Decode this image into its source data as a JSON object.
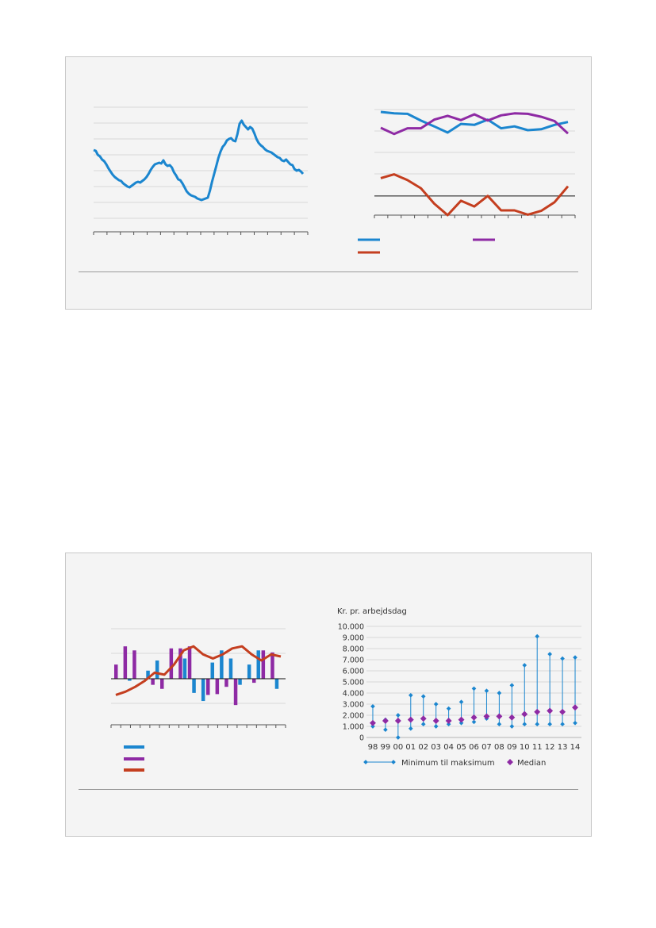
{
  "colors": {
    "blue": "#1b86cf",
    "purple": "#8e2aa4",
    "red": "#c43e1f",
    "grid": "#d9d9d9",
    "axis": "#555555",
    "zero": "#111111"
  },
  "chart_data": [
    {
      "id": "chart1",
      "type": "line",
      "series": [
        {
          "name": "",
          "color": "blue",
          "values": [
            8.6,
            8.5,
            8.0,
            7.8,
            7.4,
            7.2,
            6.8,
            6.3,
            5.9,
            5.5,
            5.2,
            5.0,
            4.8,
            4.7,
            4.4,
            4.2,
            4.0,
            3.9,
            4.1,
            4.3,
            4.5,
            4.6,
            4.5,
            4.7,
            4.9,
            5.2,
            5.6,
            6.1,
            6.5,
            6.8,
            6.9,
            7.0,
            6.9,
            7.3,
            6.8,
            6.6,
            6.7,
            6.4,
            5.8,
            5.4,
            4.9,
            4.8,
            4.4,
            3.9,
            3.4,
            3.1,
            2.9,
            2.8,
            2.7,
            2.5,
            2.4,
            2.3,
            2.4,
            2.5,
            2.6,
            3.5,
            4.6,
            5.6,
            6.6,
            7.6,
            8.4,
            9.0,
            9.3,
            9.8,
            10.0,
            10.1,
            9.8,
            9.7,
            10.6,
            11.9,
            12.3,
            11.8,
            11.5,
            11.2,
            11.5,
            11.3,
            10.7,
            10.0,
            9.5,
            9.2,
            9.0,
            8.7,
            8.5,
            8.4,
            8.3,
            8.1,
            7.9,
            7.7,
            7.6,
            7.3,
            7.2,
            7.4,
            7.1,
            6.8,
            6.7,
            6.2,
            6.0,
            6.1,
            5.9,
            5.6
          ]
        }
      ],
      "ylim": [
        0,
        14
      ]
    },
    {
      "id": "chart2",
      "type": "line",
      "series": [
        {
          "name": "",
          "color": "blue",
          "values": [
            87.5,
            86.0,
            85.5,
            78.5,
            72.5,
            66.0,
            75.0,
            74.0,
            79.5,
            70.5,
            72.5,
            68.5,
            69.5,
            74.0,
            77.0
          ]
        },
        {
          "name": "",
          "color": "purple",
          "values": [
            71.0,
            64.5,
            70.5,
            70.5,
            79.5,
            83.5,
            79.0,
            85.0,
            78.5,
            84.0,
            86.0,
            85.5,
            82.5,
            78.0,
            65.0
          ]
        },
        {
          "name": "",
          "color": "red",
          "values": [
            18.5,
            22.5,
            16.5,
            8.0,
            -8.0,
            -20.0,
            -5.0,
            -11.0,
            0.0,
            -15.0,
            -15.0,
            -19.5,
            -15.5,
            -6.5,
            10.0
          ]
        }
      ],
      "zero_line": 0,
      "ylim": [
        -20,
        90
      ]
    },
    {
      "id": "chart3",
      "type": "bar",
      "series": [
        {
          "name": "",
          "color": "blue",
          "values": [
            0,
            -0.5,
            0,
            2,
            4.5,
            0,
            0,
            5,
            -3.5,
            -5.5,
            4,
            7,
            5,
            -1.5,
            3.5,
            7,
            0,
            -2.5
          ]
        },
        {
          "name": "",
          "color": "purple",
          "values": [
            3.5,
            8,
            7,
            0,
            -1.5,
            -2.5,
            7.5,
            7.5,
            8,
            0,
            -4,
            -3.8,
            -2,
            -6.5,
            0,
            -1,
            7,
            6.5
          ]
        },
        {
          "name": "",
          "color": "red",
          "values": [
            -4,
            -3.2,
            -2,
            -0.5,
            1.5,
            1,
            3.5,
            7,
            8,
            6,
            5,
            6,
            7.5,
            8,
            6,
            4.5,
            6,
            5.5
          ]
        }
      ],
      "ylim": [
        -9,
        12
      ]
    },
    {
      "id": "chart4",
      "type": "scatter",
      "ylabel": "Kr. pr. arbejdsdag",
      "categories": [
        "98",
        "99",
        "00",
        "01",
        "02",
        "03",
        "04",
        "05",
        "06",
        "07",
        "08",
        "09",
        "10",
        "11",
        "12",
        "13",
        "14"
      ],
      "yticks": [
        "0",
        "1.000",
        "2.000",
        "3.000",
        "4.000",
        "5.000",
        "6.000",
        "7.000",
        "8.000",
        "9.000",
        "10.000"
      ],
      "ylim": [
        0,
        10000
      ],
      "legend": [
        {
          "name": "Minimum til maksimum",
          "color": "blue"
        },
        {
          "name": "Median",
          "color": "purple"
        }
      ],
      "min": [
        1000,
        700,
        0,
        800,
        1200,
        1000,
        1200,
        1300,
        1400,
        1700,
        1200,
        1000,
        1200,
        1200,
        1200,
        1200,
        1300
      ],
      "max": [
        2800,
        1600,
        2000,
        3800,
        3700,
        3000,
        2600,
        3200,
        4400,
        4200,
        4000,
        4700,
        6500,
        9100,
        7500,
        7100,
        7200
      ],
      "median": [
        1300,
        1500,
        1500,
        1600,
        1700,
        1500,
        1500,
        1600,
        1800,
        1900,
        1900,
        1800,
        2100,
        2300,
        2400,
        2300,
        2700
      ]
    }
  ]
}
